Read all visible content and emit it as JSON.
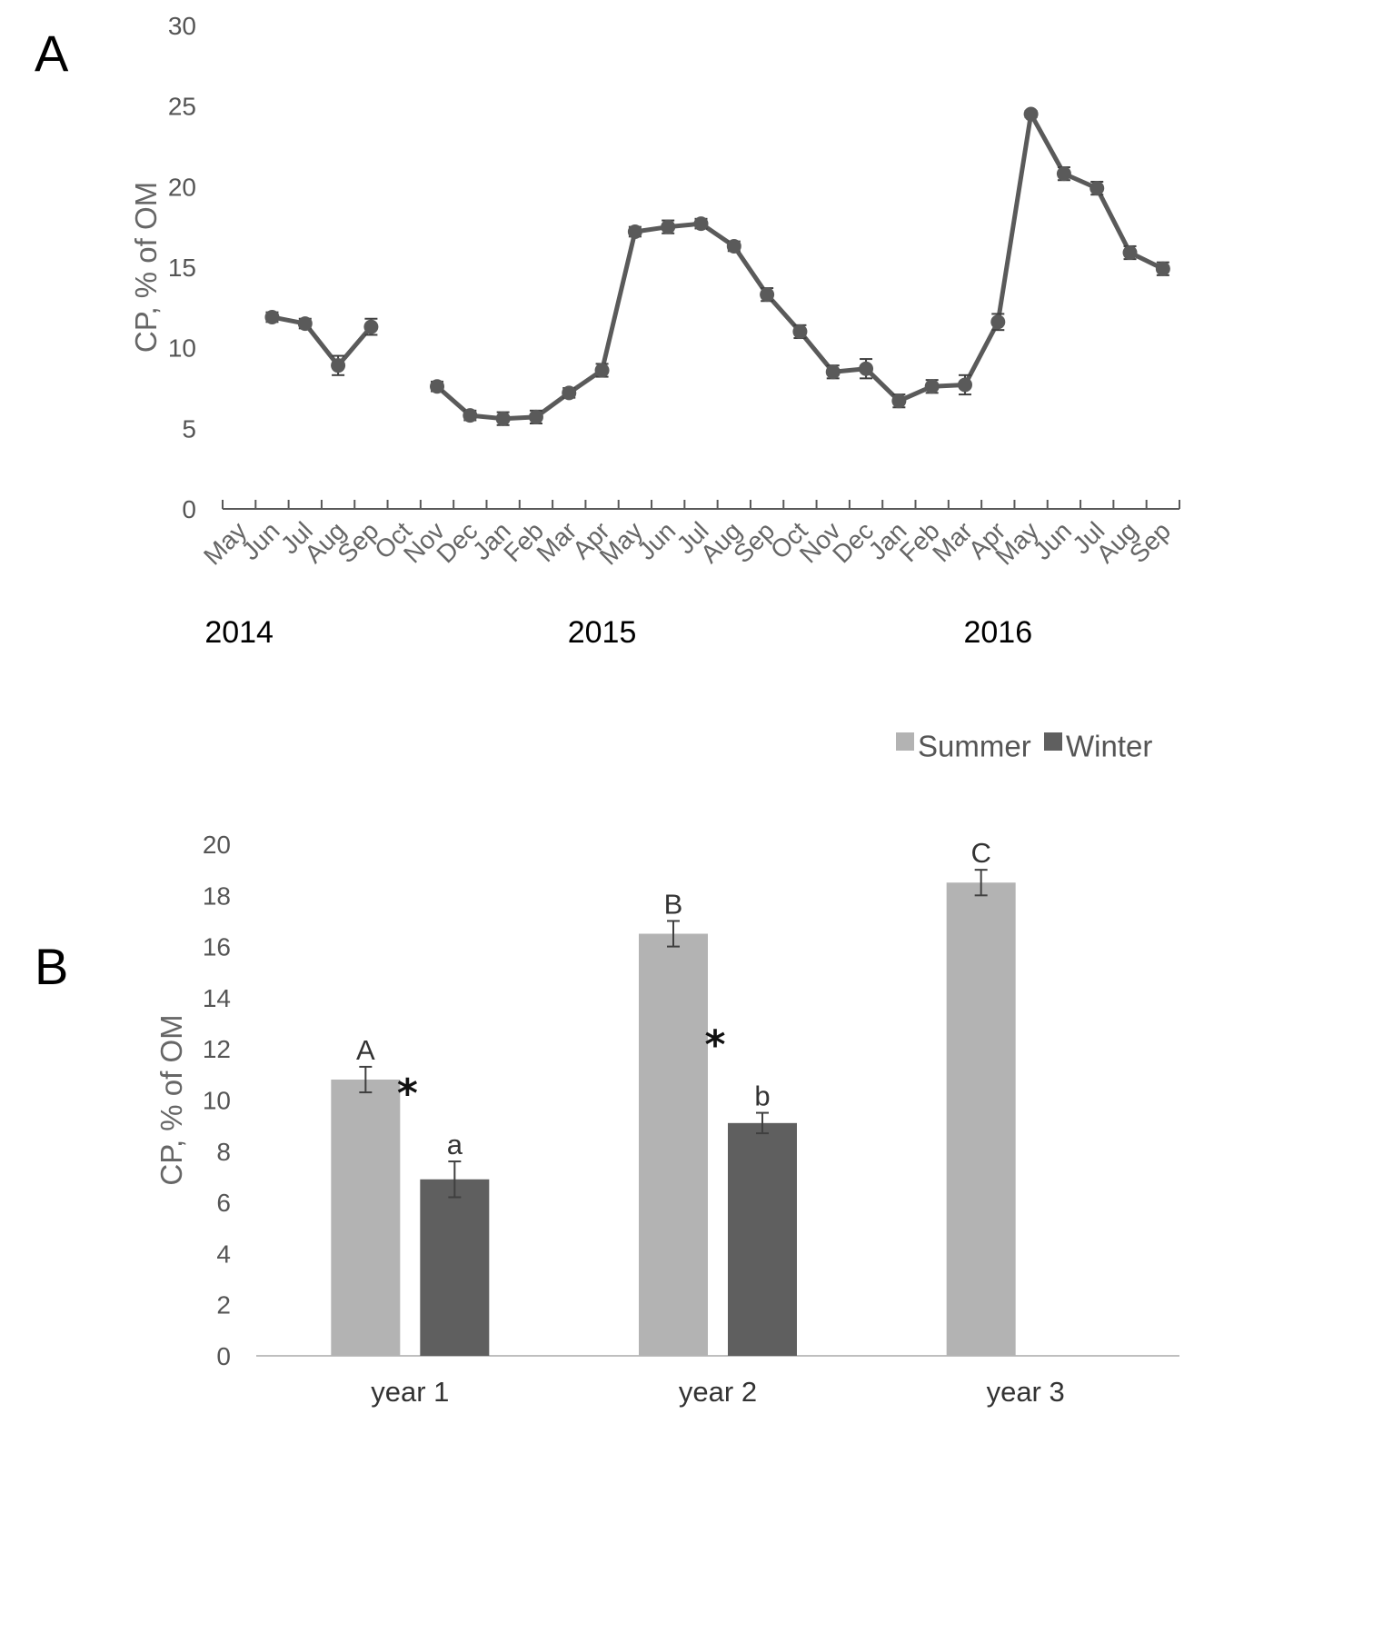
{
  "colors": {
    "line": "#5a5a5a",
    "summer": "#b3b3b3",
    "winter": "#5f5f5f",
    "axis": "#595959",
    "errorbar": "#404040"
  },
  "chart_data": [
    {
      "panel": "A",
      "type": "line",
      "ylabel": "CP, % of OM",
      "ylim": [
        0,
        30
      ],
      "yticks": [
        0,
        5,
        10,
        15,
        20,
        25,
        30
      ],
      "categories": [
        "May",
        "Jun",
        "Jul",
        "Aug",
        "Sep",
        "Oct",
        "Nov",
        "Dec",
        "Jan",
        "Feb",
        "Mar",
        "Apr",
        "May",
        "Jun",
        "Jul",
        "Aug",
        "Sep",
        "Oct",
        "Nov",
        "Dec",
        "Jan",
        "Feb",
        "Mar",
        "Apr",
        "May",
        "Jun",
        "Jul",
        "Aug",
        "Sep"
      ],
      "year_labels": [
        {
          "text": "2014",
          "category_index": 0
        },
        {
          "text": "2015",
          "category_index": 11
        },
        {
          "text": "2016",
          "category_index": 23
        }
      ],
      "series": [
        {
          "values": [
            null,
            11.9,
            11.5,
            8.9,
            11.3,
            null,
            7.6,
            5.8,
            5.6,
            5.7,
            7.2,
            8.6,
            17.2,
            17.5,
            17.7,
            16.3,
            13.3,
            11.0,
            8.5,
            8.7,
            6.7,
            7.6,
            7.7,
            11.6,
            24.5,
            20.8,
            19.9,
            15.9,
            14.9
          ],
          "errors": [
            null,
            0.3,
            0.3,
            0.6,
            0.5,
            null,
            0.3,
            0.3,
            0.4,
            0.4,
            0.3,
            0.4,
            0.3,
            0.4,
            0.3,
            0.3,
            0.4,
            0.4,
            0.4,
            0.6,
            0.4,
            0.4,
            0.6,
            0.5,
            0.2,
            0.4,
            0.4,
            0.4,
            0.4
          ]
        }
      ],
      "grid": false
    },
    {
      "panel": "B",
      "type": "bar",
      "ylabel": "CP, % of OM",
      "ylim": [
        0,
        20
      ],
      "yticks": [
        0,
        2,
        4,
        6,
        8,
        10,
        12,
        14,
        16,
        18,
        20
      ],
      "categories": [
        "year 1",
        "year 2",
        "year 3"
      ],
      "legend_position": "top-right",
      "series": [
        {
          "name": "Summer",
          "values": [
            10.8,
            16.5,
            18.5
          ],
          "errors": [
            0.5,
            0.5,
            0.5
          ],
          "letters": [
            "A",
            "B",
            "C"
          ]
        },
        {
          "name": "Winter",
          "values": [
            6.9,
            9.1,
            null
          ],
          "errors": [
            0.7,
            0.4,
            null
          ],
          "letters": [
            "a",
            "b",
            ""
          ]
        }
      ],
      "significance_marks": [
        "*",
        "*",
        ""
      ],
      "grid": false
    }
  ]
}
